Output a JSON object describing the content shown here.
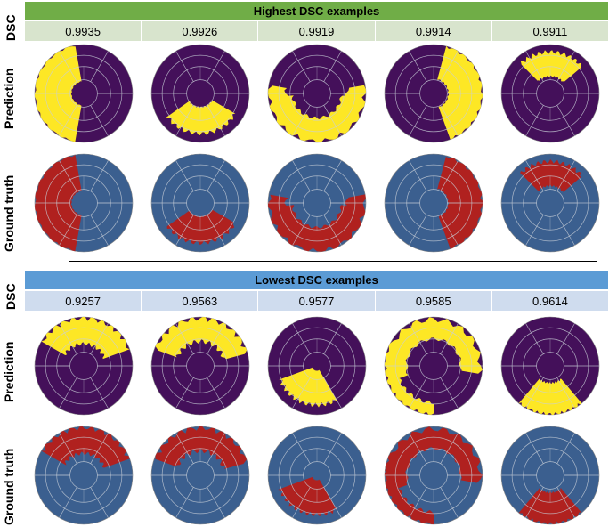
{
  "top_section": {
    "title": "Highest DSC examples",
    "dsc_label": "DSC",
    "dsc_values": [
      "0.9935",
      "0.9926",
      "0.9919",
      "0.9914",
      "0.9911"
    ]
  },
  "bottom_section": {
    "title": "Lowest DSC examples",
    "dsc_label": "DSC",
    "dsc_values": [
      "0.9257",
      "0.9563",
      "0.9577",
      "0.9585",
      "0.9614"
    ]
  },
  "row_labels": {
    "prediction": "Prediction",
    "ground_truth": "Ground truth"
  },
  "colors": {
    "prediction_background": "#44105a",
    "prediction_region": "#fde725",
    "truth_background": "#3b5f8f",
    "truth_region": "#b0211f",
    "grid": "#c9cfd8",
    "header_highest": "#70ad47",
    "header_lowest": "#5b9bd5"
  }
}
